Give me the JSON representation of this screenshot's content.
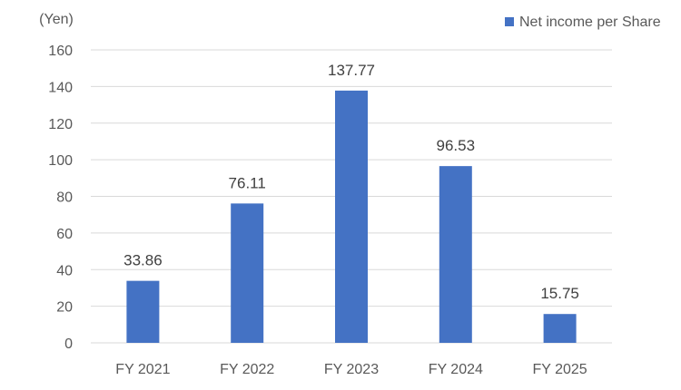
{
  "chart_data": {
    "type": "bar",
    "ylabel": "(Yen)",
    "categories": [
      "FY 2021",
      "FY 2022",
      "FY 2023",
      "FY 2024",
      "FY 2025"
    ],
    "series": [
      {
        "name": "Net income per Share",
        "values": [
          33.86,
          76.11,
          137.77,
          96.53,
          15.75
        ],
        "color": "#4472C4"
      }
    ],
    "data_labels": [
      "33.86",
      "76.11",
      "137.77",
      "96.53",
      "15.75"
    ],
    "yticks": [
      "0",
      "20",
      "40",
      "60",
      "80",
      "100",
      "120",
      "140",
      "160"
    ],
    "ylim": [
      0,
      160
    ],
    "grid": true,
    "legend": "top-right",
    "gridline_color": "#D9D9D9"
  }
}
